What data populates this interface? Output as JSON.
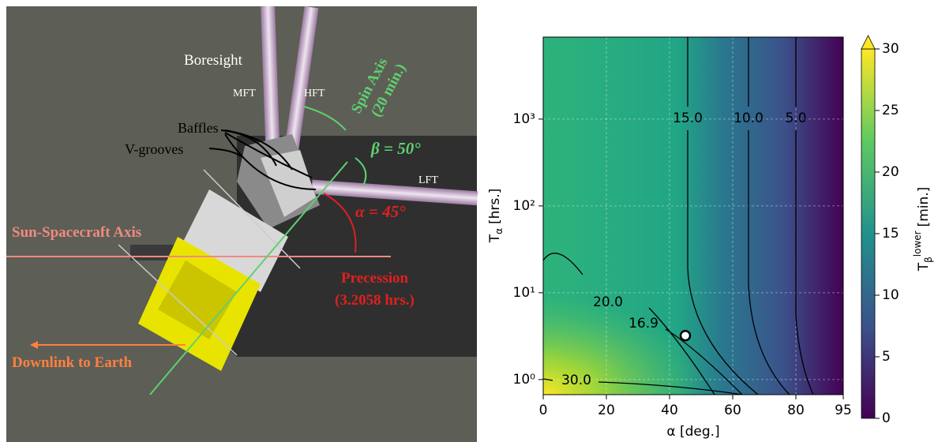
{
  "illustration": {
    "labels": {
      "boresight": "Boresight",
      "mft": "MFT",
      "hft": "HFT",
      "spin_axis": [
        "Spin Axis",
        "(20 min.)"
      ],
      "beta": "β = 50°",
      "baffles": "Baffles",
      "v_grooves": "V-grooves",
      "lft": "LFT",
      "alpha": "α = 45°",
      "sun_axis": "Sun-Spacecraft Axis",
      "precession": [
        "Precession",
        "(3.2058 hrs.)"
      ],
      "downlink": "Downlink to Earth"
    }
  },
  "chart_data": {
    "type": "heatmap",
    "x_label": "α [deg.]",
    "y_label": {
      "main": "T",
      "sub": "α",
      "unit": "[hrs.]"
    },
    "xlim": [
      0,
      95
    ],
    "xticks": [
      0,
      20,
      40,
      60,
      80,
      95
    ],
    "ylim": [
      0.67,
      8800
    ],
    "log_y": true,
    "yticks": [
      {
        "value": 1,
        "label": "10⁰"
      },
      {
        "value": 10,
        "label": "10¹"
      },
      {
        "value": 100,
        "label": "10²"
      },
      {
        "value": 1000,
        "label": "10³"
      }
    ],
    "grid": true,
    "contour_labels": [
      "15.0",
      "10.0",
      "5.0",
      "20.0",
      "16.9",
      "30.0"
    ],
    "point": {
      "x": 45,
      "y": 3.2058
    },
    "colorbar": {
      "clim": [
        0,
        30
      ],
      "ticks": [
        0,
        5,
        10,
        15,
        20,
        25,
        30
      ],
      "extend": "max",
      "colors": [
        "#440154",
        "#3b528b",
        "#21918c",
        "#5ec962",
        "#fde725"
      ],
      "label": {
        "main": "T",
        "sub": "β",
        "sup": "lower",
        "unit": "[min.]"
      }
    }
  }
}
